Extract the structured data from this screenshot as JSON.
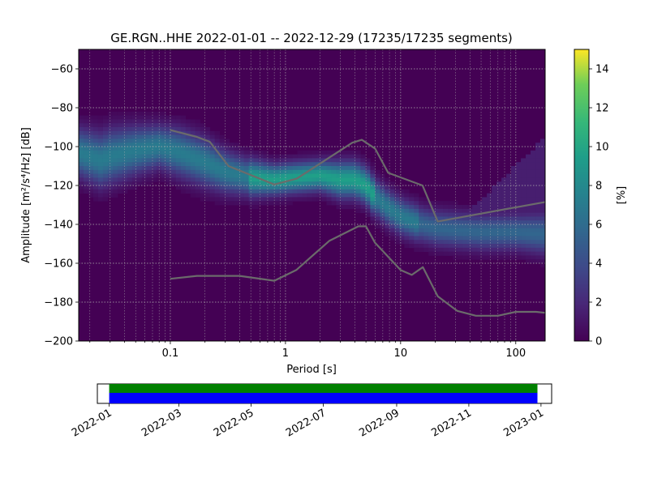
{
  "title": "GE.RGN..HHE   2022-01-01 -- 2022-12-29  (17235/17235 segments)",
  "chart_data": {
    "type": "heatmap",
    "title": "GE.RGN..HHE   2022-01-01 -- 2022-12-29  (17235/17235 segments)",
    "xlabel": "Period [s]",
    "ylabel": "Amplitude [m²/s⁴/Hz] [dB]",
    "x_scale": "log",
    "xlim": [
      0.016,
      180
    ],
    "ylim": [
      -200,
      -50
    ],
    "x_ticks": [
      0.1,
      1,
      10,
      100
    ],
    "x_tick_labels": [
      "0.1",
      "1",
      "10",
      "100"
    ],
    "y_ticks": [
      -200,
      -180,
      -160,
      -140,
      -120,
      -100,
      -80,
      -60
    ],
    "y_tick_labels": [
      "−200",
      "−180",
      "−160",
      "−140",
      "−120",
      "−100",
      "−80",
      "−60"
    ],
    "grid": true,
    "colorbar": {
      "label": "[%]",
      "range": [
        0,
        15
      ],
      "ticks": [
        0,
        2,
        4,
        6,
        8,
        10,
        12,
        14
      ],
      "tick_labels": [
        "0",
        "2",
        "4",
        "6",
        "8",
        "10",
        "12",
        "14"
      ],
      "colormap": "viridis"
    },
    "density_ridge": {
      "period": [
        0.016,
        0.025,
        0.03,
        0.05,
        0.08,
        0.12,
        0.2,
        0.3,
        0.5,
        0.8,
        1.2,
        2,
        3,
        4,
        5,
        6,
        8,
        10,
        15,
        20,
        30,
        50,
        100,
        180
      ],
      "amplitude": [
        -103,
        -107,
        -105,
        -102,
        -100,
        -103,
        -108,
        -113,
        -116,
        -117,
        -116,
        -115,
        -117,
        -117,
        -120,
        -126,
        -132,
        -136,
        -140,
        -142,
        -143,
        -144,
        -144,
        -145
      ],
      "spread_db": [
        8,
        9,
        9,
        8,
        7,
        8,
        8,
        7,
        6,
        5,
        5,
        5,
        6,
        6,
        6,
        6,
        6,
        6,
        6,
        6,
        6,
        6,
        6,
        7
      ]
    },
    "series": [
      {
        "period": [
          0.1,
          0.17,
          0.22,
          0.32,
          0.8,
          1.25,
          3.8,
          4.6,
          6.0,
          7.8,
          15.5,
          21.0,
          180
        ],
        "amplitude": [
          -91.5,
          -95,
          -97.5,
          -110,
          -119.5,
          -116.5,
          -98,
          -96.5,
          -101,
          -113.5,
          -120,
          -138.5,
          -128.5
        ]
      },
      {
        "period": [
          0.1,
          0.17,
          0.4,
          0.8,
          1.24,
          2.4,
          4.3,
          5.0,
          6.0,
          10.0,
          12.5,
          15.6,
          21.0,
          31.0,
          45.0,
          70.0,
          100.0,
          150.0,
          180.0
        ],
        "amplitude": [
          -168,
          -166.5,
          -166.5,
          -169,
          -163.5,
          -148.5,
          -141,
          -141,
          -149.5,
          -163.5,
          -166,
          -162,
          -177,
          -184.5,
          -187,
          -187,
          -185,
          -185,
          -185.5
        ]
      }
    ]
  },
  "timeline": {
    "start": "2022-01-01",
    "end": "2022-12-29",
    "axis_start": "2021-12-22",
    "axis_end": "2023-01-10",
    "ticks": [
      "2022-01",
      "2022-03",
      "2022-05",
      "2022-07",
      "2022-09",
      "2022-11",
      "2023-01"
    ],
    "colors": {
      "data": "#008000",
      "gaps": "#0000ff"
    }
  }
}
